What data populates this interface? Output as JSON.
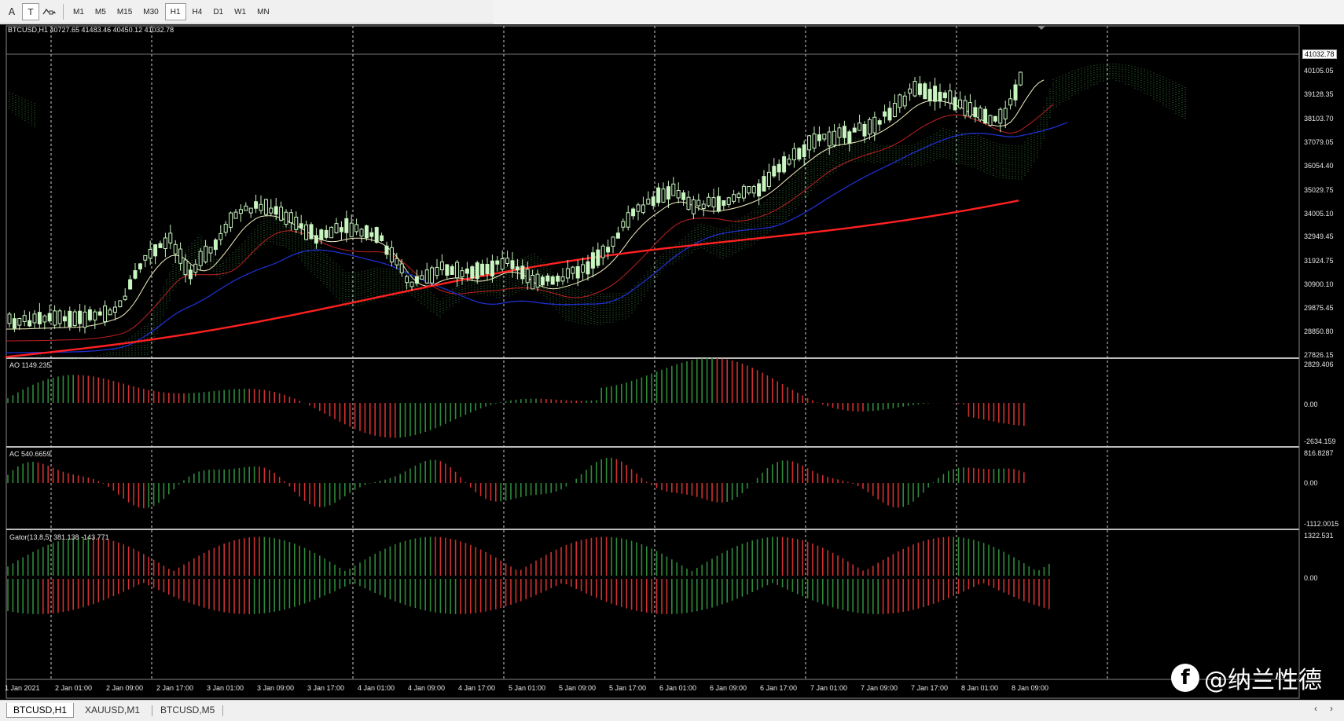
{
  "toolbar": {
    "icons": [
      "text-a-icon",
      "text-label-icon",
      "shapes-icon"
    ],
    "text_icon_label": "A",
    "label_icon_label": "T",
    "timeframes": [
      "M1",
      "M5",
      "M15",
      "M30",
      "H1",
      "H4",
      "D1",
      "W1",
      "MN"
    ],
    "active_timeframe": "H1"
  },
  "main_pane": {
    "header": "BTCUSD,H1  40727.65 41483.46 40450.12 41032.78",
    "current_price": "41032.78",
    "y_labels": [
      "41032.78",
      "40105.05",
      "39128.35",
      "38103.70",
      "37079.05",
      "36054.40",
      "35029.75",
      "34005.10",
      "32949.45",
      "31924.75",
      "30900.10",
      "29875.45",
      "28850.80",
      "27826.15"
    ]
  },
  "ao_pane": {
    "header": "AO 1149.235",
    "y_labels": [
      "2829.406",
      "0.00",
      "-2634.159"
    ]
  },
  "ac_pane": {
    "header": "AC 540.6659",
    "y_labels": [
      "816.8287",
      "0.00",
      "-1112.0015"
    ]
  },
  "gator_pane": {
    "header": "Gator(13,8,5) 381.138 -143.771",
    "y_labels": [
      "1322.531",
      "0.00"
    ]
  },
  "x_labels": [
    "1 Jan 2021",
    "2 Jan 01:00",
    "2 Jan 09:00",
    "2 Jan 17:00",
    "3 Jan 01:00",
    "3 Jan 09:00",
    "3 Jan 17:00",
    "4 Jan 01:00",
    "4 Jan 09:00",
    "4 Jan 17:00",
    "5 Jan 01:00",
    "5 Jan 09:00",
    "5 Jan 17:00",
    "6 Jan 01:00",
    "6 Jan 09:00",
    "6 Jan 17:00",
    "7 Jan 01:00",
    "7 Jan 09:00",
    "7 Jan 17:00",
    "8 Jan 01:00",
    "8 Jan 09:00"
  ],
  "watermark": {
    "logo": "f",
    "text": "@纳兰性德"
  },
  "tabs": [
    "BTCUSD,H1",
    "XAUUSD,M1",
    "BTCUSD,M5"
  ],
  "active_tab": "BTCUSD,H1",
  "tab_nav": {
    "prev": "‹",
    "next": "›"
  },
  "colors": {
    "background": "#000000",
    "bull_candle": "#c8f5c0",
    "up_bar": "#2e8b3a",
    "down_bar": "#d03030",
    "ma_red": "#ff2020",
    "ma_blue": "#1e2fd0",
    "ma_yellow": "#f5f0c0",
    "ma_thin_red": "#c02020",
    "cloud": "#4caf50"
  }
}
